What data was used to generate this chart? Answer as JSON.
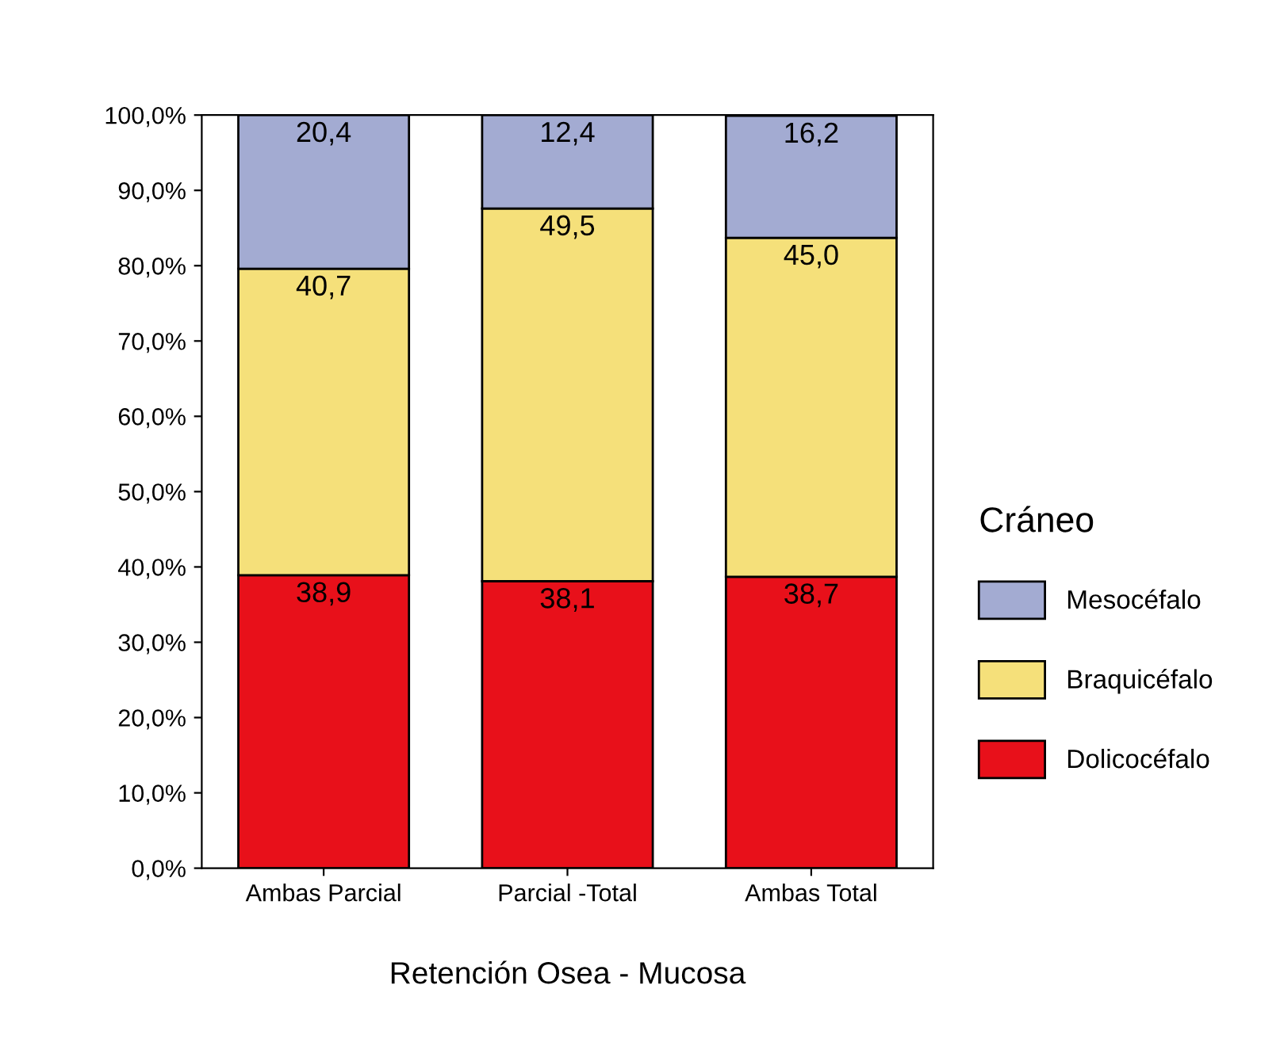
{
  "chart_data": {
    "type": "bar",
    "stacked": true,
    "xlabel": "Retención Osea - Mucosa",
    "legend_title": "Cráneo",
    "legend": "right",
    "grid": false,
    "categories": [
      "Ambas Parcial",
      "Parcial -Total",
      "Ambas Total"
    ],
    "series": [
      {
        "name": "Dolicocéfalo",
        "color": "#e8101a",
        "values": [
          38.9,
          38.1,
          38.7
        ],
        "value_labels": [
          "38,9",
          "38,1",
          "38,7"
        ]
      },
      {
        "name": "Braquicéfalo",
        "color": "#f5e07a",
        "values": [
          40.7,
          49.5,
          45.0
        ],
        "value_labels": [
          "40,7",
          "49,5",
          "45,0"
        ]
      },
      {
        "name": "Mesocéfalo",
        "color": "#a3abd2",
        "values": [
          20.4,
          12.4,
          16.2
        ],
        "value_labels": [
          "20,4",
          "12,4",
          "16,2"
        ]
      }
    ],
    "ylim": [
      0,
      100
    ],
    "yticks": [
      {
        "value": 0,
        "label": "0,0%"
      },
      {
        "value": 10,
        "label": "10,0%"
      },
      {
        "value": 20,
        "label": "20,0%"
      },
      {
        "value": 30,
        "label": "30,0%"
      },
      {
        "value": 40,
        "label": "40,0%"
      },
      {
        "value": 50,
        "label": "50,0%"
      },
      {
        "value": 60,
        "label": "60,0%"
      },
      {
        "value": 70,
        "label": "70,0%"
      },
      {
        "value": 80,
        "label": "80,0%"
      },
      {
        "value": 90,
        "label": "90,0%"
      },
      {
        "value": 100,
        "label": "100,0%"
      }
    ]
  }
}
